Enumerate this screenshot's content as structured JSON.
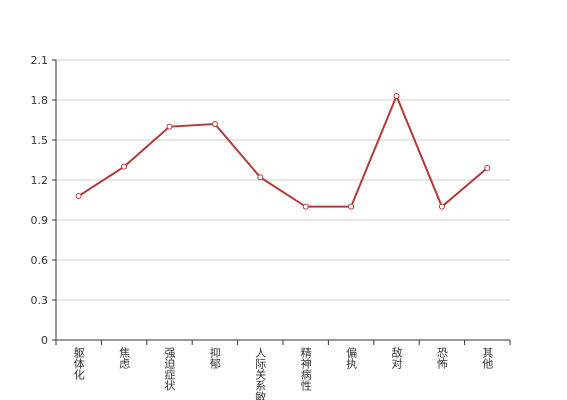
{
  "chart_data": {
    "type": "line",
    "categories": [
      "躯体化",
      "焦虑",
      "强迫症状",
      "抑郁",
      "人际关系敏感",
      "精神病性",
      "偏执",
      "敌对",
      "恐怖",
      "其他"
    ],
    "values": [
      1.08,
      1.3,
      1.6,
      1.62,
      1.22,
      1.0,
      1.0,
      1.83,
      1.0,
      1.29
    ],
    "color": "#b5393a",
    "ylim": [
      0,
      2.1
    ],
    "yticks": [
      0,
      0.3,
      0.6,
      0.9,
      1.2,
      1.5,
      1.8,
      2.1
    ],
    "grid": true
  }
}
